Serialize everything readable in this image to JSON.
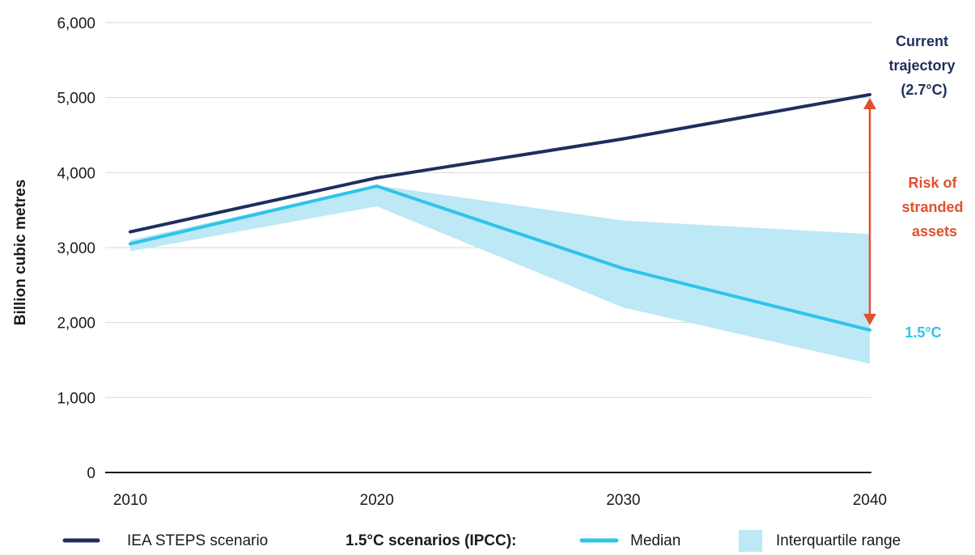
{
  "chart_data": {
    "type": "line",
    "ylabel": "Billion cubic metres",
    "xlabel": "",
    "x": [
      2010,
      2020,
      2030,
      2040
    ],
    "x_tick_labels": [
      "2010",
      "2020",
      "2030",
      "2040"
    ],
    "ylim": [
      0,
      6000
    ],
    "y_ticks": [
      0,
      1000,
      2000,
      3000,
      4000,
      5000,
      6000
    ],
    "y_tick_labels": [
      "0",
      "1,000",
      "2,000",
      "3,000",
      "4,000",
      "5,000",
      "6,000"
    ],
    "grid": "horizontal",
    "series": [
      {
        "name": "IEA STEPS scenario",
        "color": "#1e2f5e",
        "values": [
          3210,
          3930,
          4450,
          5040
        ]
      },
      {
        "name": "Median",
        "color": "#2ec4ea",
        "values": [
          3050,
          3820,
          2720,
          1900
        ]
      }
    ],
    "band": {
      "name": "Interquartile range",
      "color": "#bde8f5",
      "lower": [
        2950,
        3550,
        2200,
        1450
      ],
      "upper": [
        3100,
        3830,
        3360,
        3180
      ]
    },
    "annotations": {
      "current_lines": [
        "Current",
        "trajectory",
        "(2.7°C)"
      ],
      "current_color": "#1e2f5e",
      "risk_lines": [
        "Risk of",
        "stranded",
        "assets"
      ],
      "risk_color": "#e0502f",
      "target_label": "1.5°C",
      "target_color": "#2ec4ea"
    },
    "legend": {
      "placement": "bottom",
      "steps_label": "IEA STEPS scenario",
      "group_label": "1.5°C scenarios (IPCC):",
      "median_label": "Median",
      "range_label": "Interquartile range"
    }
  }
}
